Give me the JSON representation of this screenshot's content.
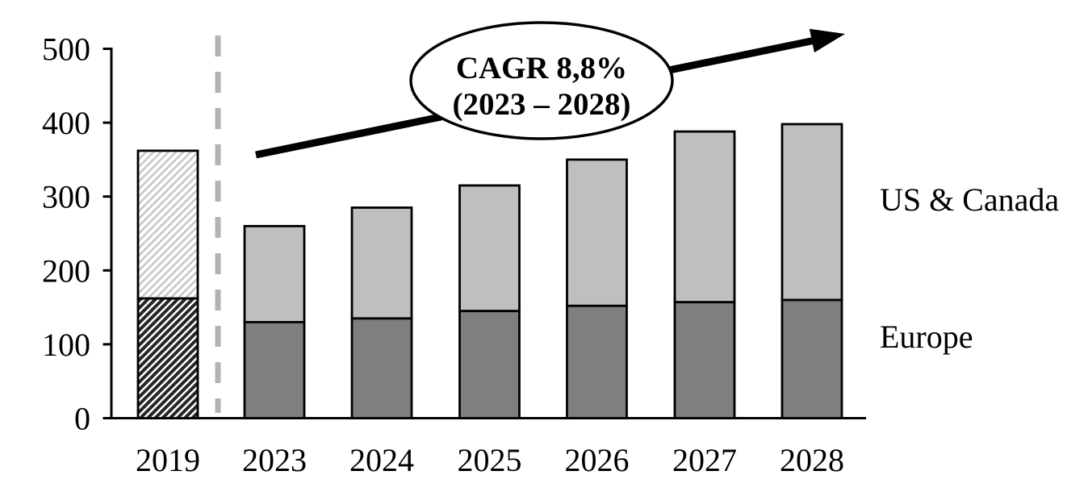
{
  "chart_data": {
    "type": "bar",
    "stacked": true,
    "title": "",
    "categories": [
      "2019",
      "2023",
      "2024",
      "2025",
      "2026",
      "2027",
      "2028"
    ],
    "series": [
      {
        "name": "Europe",
        "values": [
          162,
          130,
          135,
          145,
          152,
          157,
          160
        ],
        "color": "#7f7f7f",
        "fill_2019": "dark-diagonal-hatch"
      },
      {
        "name": "US & Canada",
        "values": [
          200,
          130,
          150,
          170,
          198,
          231,
          238
        ],
        "color": "#bfbfbf",
        "fill_2019": "light-diagonal-hatch"
      }
    ],
    "totals": [
      362,
      260,
      285,
      315,
      350,
      388,
      398
    ],
    "xlabel": "",
    "ylabel": "",
    "ylim": [
      0,
      500
    ],
    "yticks": [
      "0",
      "100",
      "200",
      "300",
      "400",
      "500"
    ],
    "grid": "off",
    "legend_position": "right-of-last-bar",
    "annotation": {
      "line1": "CAGR 8,8%",
      "line2": "(2023 – 2028)",
      "shape": "ellipse-over-trend-arrow"
    },
    "divider_after_category": "2019"
  },
  "colors": {
    "bar_outline": "#000000",
    "europe_fill": "#7f7f7f",
    "us_canada_fill": "#bfbfbf",
    "hatch_light_line": "#c8c8c8",
    "hatch_dark_line": "#262626",
    "divider_dash": "#b3b3b3",
    "axis": "#000000",
    "arrow": "#000000"
  }
}
